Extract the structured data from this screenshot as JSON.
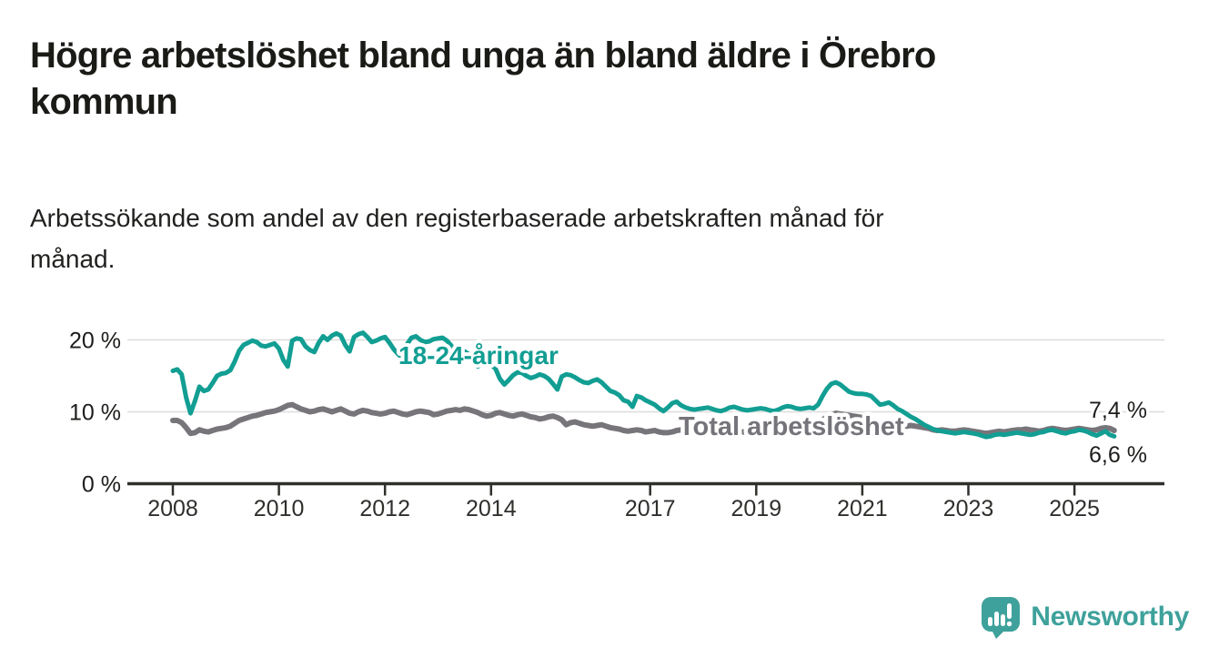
{
  "header": {
    "title": "Högre arbetslöshet bland unga än bland äldre i Örebro\nkommun",
    "subtitle": "Arbetssökande som andel av den registerbaserade arbetskraften månad för\nmånad."
  },
  "footer": {
    "brand": "Newsworthy"
  },
  "colors": {
    "youth_line": "#129e93",
    "total_line": "#77757a",
    "total_label": "#76747a",
    "axis": "#2f2f2c",
    "grid": "#dcdcdc",
    "text": "#1d1d1b",
    "brand_teal": "#3ea19b"
  },
  "chart_data": {
    "type": "line",
    "unit": "%",
    "frequency": "monthly",
    "x_start": {
      "year": 2008,
      "month": 1
    },
    "x_end": {
      "year": 2025,
      "month": 10
    },
    "xlim": [
      2007.1,
      2026.6
    ],
    "ylim": [
      0,
      22
    ],
    "grid": "horizontal",
    "legend_position": "inline-labels",
    "x_ticks": [
      2008,
      2010,
      2012,
      2014,
      2017,
      2019,
      2021,
      2023,
      2025
    ],
    "y_ticks": [
      {
        "value": 0,
        "label": "0 %"
      },
      {
        "value": 10,
        "label": "10 %"
      },
      {
        "value": 20,
        "label": "20 %"
      }
    ],
    "series": [
      {
        "name": "Total arbetslöshet",
        "color": "#77757a",
        "end_label": "7,4 %",
        "end_value": 7.4,
        "values": [
          8.8,
          8.8,
          8.5,
          7.8,
          7.0,
          7.1,
          7.5,
          7.3,
          7.2,
          7.4,
          7.6,
          7.7,
          7.8,
          8.0,
          8.4,
          8.8,
          9.0,
          9.2,
          9.4,
          9.5,
          9.7,
          9.9,
          10.0,
          10.1,
          10.3,
          10.6,
          10.9,
          11.0,
          10.7,
          10.4,
          10.2,
          10.0,
          10.1,
          10.3,
          10.4,
          10.2,
          10.0,
          10.2,
          10.4,
          10.1,
          9.8,
          9.7,
          10.0,
          10.2,
          10.1,
          9.9,
          9.8,
          9.7,
          9.8,
          10.0,
          10.1,
          9.9,
          9.7,
          9.6,
          9.8,
          10.0,
          10.1,
          10.0,
          9.9,
          9.6,
          9.7,
          9.9,
          10.1,
          10.2,
          10.3,
          10.2,
          10.4,
          10.3,
          10.1,
          9.9,
          9.6,
          9.4,
          9.5,
          9.8,
          9.9,
          9.7,
          9.5,
          9.4,
          9.6,
          9.7,
          9.5,
          9.3,
          9.2,
          9.0,
          9.1,
          9.3,
          9.4,
          9.2,
          8.9,
          8.2,
          8.5,
          8.6,
          8.4,
          8.2,
          8.1,
          8.0,
          8.1,
          8.2,
          8.0,
          7.8,
          7.7,
          7.6,
          7.4,
          7.3,
          7.4,
          7.5,
          7.4,
          7.2,
          7.3,
          7.4,
          7.2,
          7.1,
          7.1,
          7.2,
          7.4,
          7.5,
          7.4,
          7.3,
          7.3,
          7.4,
          7.4,
          7.5,
          7.4,
          7.3,
          7.2,
          7.2,
          7.3,
          7.4,
          7.3,
          7.2,
          7.2,
          7.3,
          7.3,
          7.4,
          7.3,
          7.2,
          7.2,
          7.3,
          7.5,
          7.6,
          7.5,
          7.4,
          7.5,
          7.6,
          7.7,
          7.8,
          8.2,
          8.9,
          9.3,
          9.6,
          9.8,
          9.7,
          9.6,
          9.5,
          9.4,
          9.3,
          9.2,
          9.0,
          8.9,
          8.7,
          8.5,
          8.4,
          8.3,
          8.2,
          8.1,
          8.0,
          8.0,
          8.1,
          8.0,
          7.9,
          7.8,
          7.7,
          7.5,
          7.4,
          7.5,
          7.4,
          7.3,
          7.3,
          7.4,
          7.5,
          7.4,
          7.3,
          7.2,
          7.1,
          7.0,
          7.1,
          7.2,
          7.3,
          7.2,
          7.3,
          7.4,
          7.5,
          7.5,
          7.6,
          7.5,
          7.4,
          7.3,
          7.4,
          7.6,
          7.7,
          7.6,
          7.5,
          7.4,
          7.5,
          7.6,
          7.7,
          7.6,
          7.5,
          7.4,
          7.5,
          7.7,
          7.8,
          7.7,
          7.4
        ]
      },
      {
        "name": "18-24-åringar",
        "color": "#129e93",
        "end_label": "6,6 %",
        "end_value": 6.6,
        "values": [
          15.7,
          15.9,
          15.2,
          12.0,
          9.8,
          11.5,
          13.5,
          12.9,
          13.1,
          14.0,
          15.0,
          15.3,
          15.4,
          15.8,
          17.0,
          18.5,
          19.3,
          19.6,
          19.9,
          19.7,
          19.2,
          19.1,
          19.3,
          19.5,
          18.8,
          17.2,
          16.3,
          19.9,
          20.2,
          20.1,
          19.1,
          18.6,
          18.3,
          19.6,
          20.5,
          20.0,
          20.6,
          20.9,
          20.6,
          19.3,
          18.4,
          20.4,
          20.8,
          21.0,
          20.4,
          19.7,
          19.9,
          20.2,
          20.4,
          19.6,
          18.7,
          18.0,
          17.5,
          19.4,
          20.3,
          20.5,
          20.0,
          19.7,
          19.8,
          20.1,
          20.2,
          20.3,
          19.9,
          19.2,
          18.0,
          17.6,
          18.4,
          18.0,
          16.9,
          16.3,
          16.8,
          17.0,
          16.6,
          16.0,
          14.6,
          13.8,
          14.4,
          15.1,
          15.5,
          15.4,
          15.0,
          14.7,
          14.9,
          15.2,
          15.0,
          14.6,
          13.9,
          13.1,
          14.9,
          15.2,
          15.1,
          14.8,
          14.4,
          14.1,
          14.0,
          14.3,
          14.5,
          14.1,
          13.5,
          12.9,
          12.7,
          12.3,
          11.6,
          11.4,
          10.7,
          12.2,
          12.0,
          11.6,
          11.3,
          11.0,
          10.5,
          10.1,
          10.6,
          11.2,
          11.4,
          10.9,
          10.6,
          10.4,
          10.3,
          10.4,
          10.5,
          10.6,
          10.4,
          10.2,
          10.1,
          10.3,
          10.6,
          10.7,
          10.5,
          10.3,
          10.2,
          10.3,
          10.4,
          10.5,
          10.4,
          10.2,
          10.1,
          10.3,
          10.6,
          10.8,
          10.7,
          10.5,
          10.4,
          10.5,
          10.6,
          10.5,
          11.0,
          12.2,
          13.2,
          13.9,
          14.1,
          13.8,
          13.3,
          12.8,
          12.6,
          12.5,
          12.5,
          12.4,
          12.2,
          11.6,
          11.0,
          11.1,
          11.3,
          10.9,
          10.4,
          10.1,
          9.7,
          9.3,
          9.0,
          8.6,
          8.2,
          7.9,
          7.6,
          7.4,
          7.3,
          7.2,
          7.1,
          7.0,
          7.1,
          7.2,
          7.1,
          7.0,
          6.9,
          6.7,
          6.5,
          6.6,
          6.8,
          6.9,
          6.8,
          6.9,
          7.0,
          7.1,
          7.0,
          6.9,
          6.8,
          6.9,
          7.1,
          7.2,
          7.4,
          7.5,
          7.3,
          7.1,
          7.0,
          7.2,
          7.3,
          7.5,
          7.4,
          7.2,
          6.9,
          6.7,
          7.0,
          7.3,
          6.8,
          6.6
        ]
      }
    ]
  }
}
